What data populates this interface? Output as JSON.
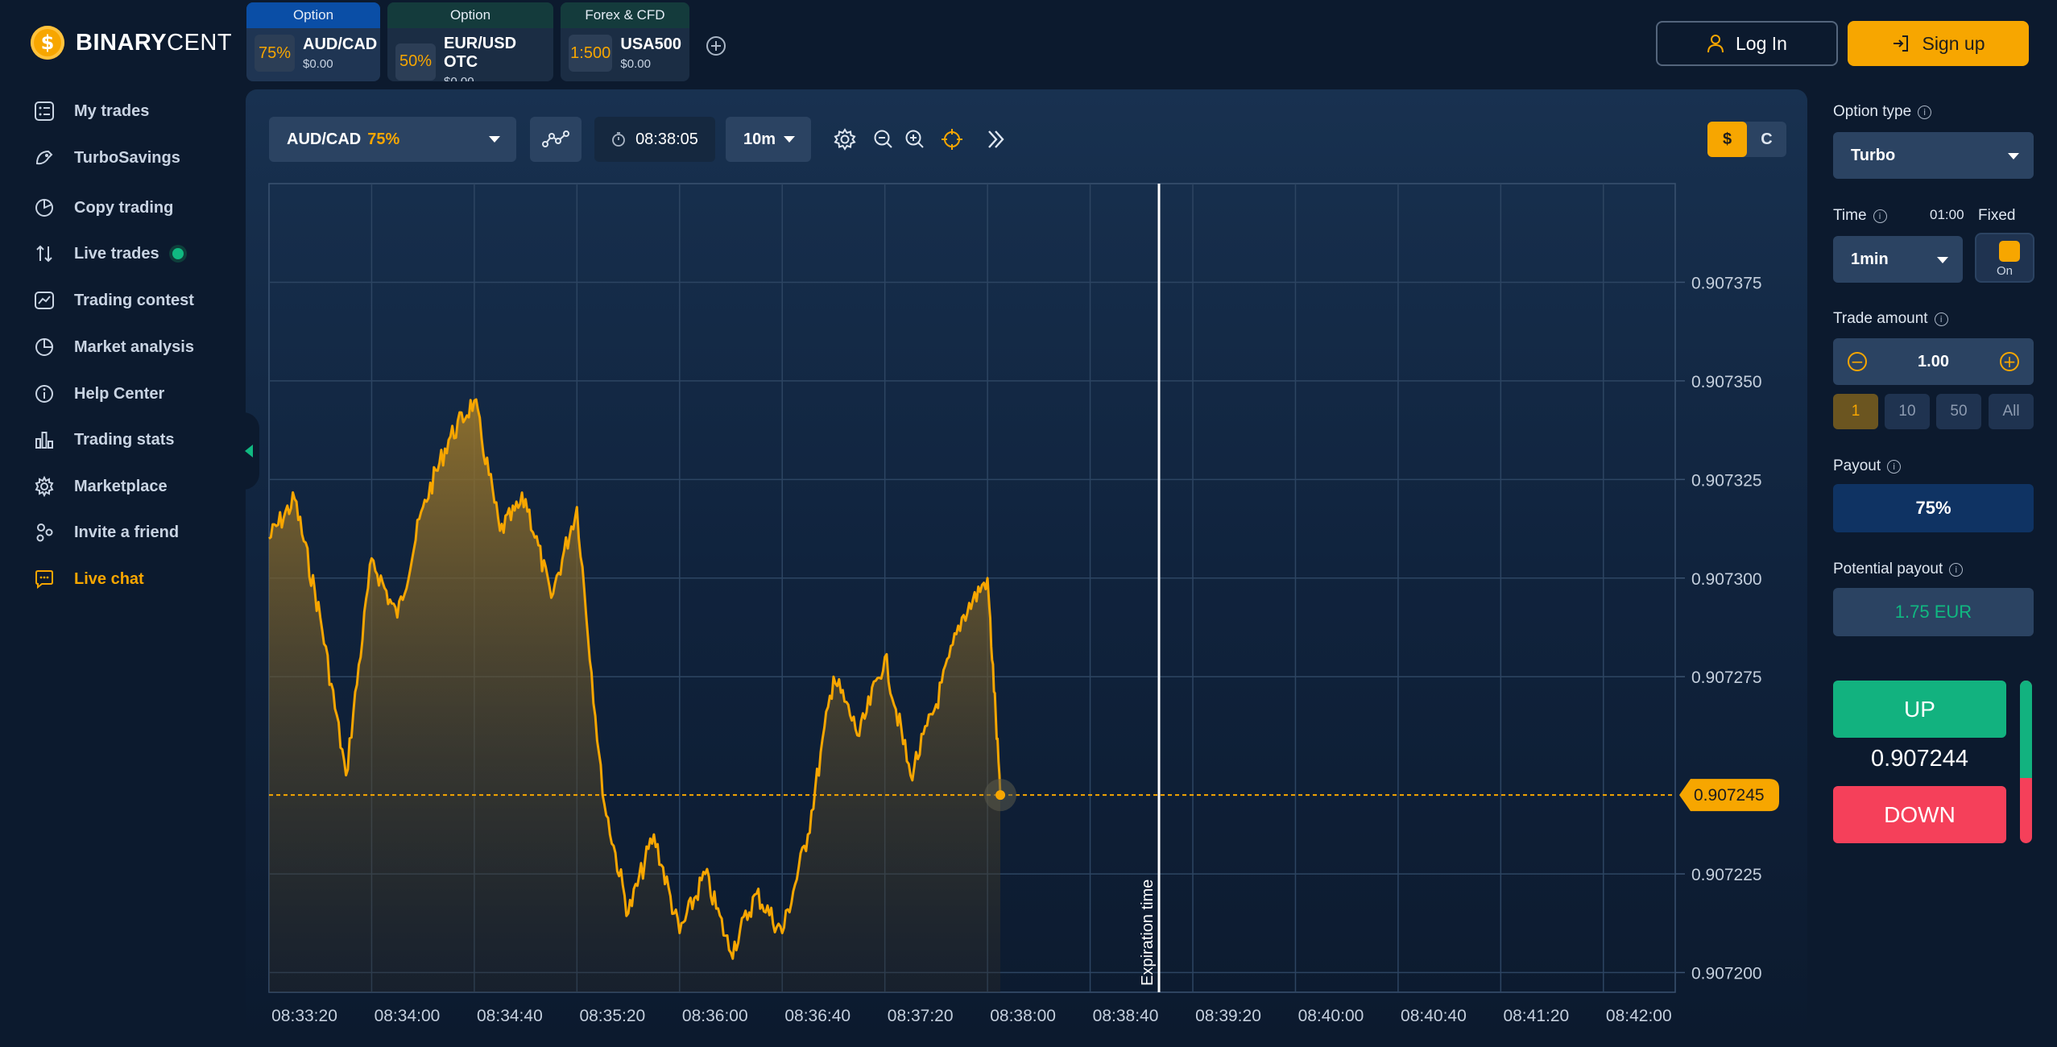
{
  "logo": {
    "mark": "$",
    "brand_bold": "BINARY",
    "brand_light": "CENT"
  },
  "sidebar": {
    "items": [
      {
        "label": "My trades",
        "icon": "trades-icon"
      },
      {
        "label": "TurboSavings",
        "icon": "turbosavings-icon"
      },
      {
        "label": "Copy trading",
        "icon": "copy-trading-icon"
      },
      {
        "label": "Live trades",
        "icon": "live-trades-icon"
      },
      {
        "label": "Trading contest",
        "icon": "trading-contest-icon"
      },
      {
        "label": "Market analysis",
        "icon": "market-analysis-icon"
      },
      {
        "label": "Help Center",
        "icon": "info-icon"
      },
      {
        "label": "Trading stats",
        "icon": "bar-chart-icon"
      },
      {
        "label": "Marketplace",
        "icon": "gear-icon"
      },
      {
        "label": "Invite a friend",
        "icon": "invite-icon"
      },
      {
        "label": "Live chat",
        "icon": "chat-icon"
      }
    ]
  },
  "asset_tabs": [
    {
      "category": "Option",
      "chip": "75%",
      "name": "AUD/CAD",
      "balance": "$0.00"
    },
    {
      "category": "Option",
      "chip": "50%",
      "name": "EUR/USD OTC",
      "balance": "$0.00"
    },
    {
      "category": "Forex & CFD",
      "chip": "1:500",
      "name": "USA500",
      "balance": "$0.00"
    }
  ],
  "auth": {
    "login": "Log In",
    "signup": "Sign up"
  },
  "toolbar": {
    "asset": "AUD/CAD",
    "asset_pct": "75%",
    "clock": "08:38:05",
    "timeframe": "10m",
    "currency_on": "$",
    "currency_off": "C"
  },
  "chart_data": {
    "type": "area",
    "title": "",
    "xlabel": "",
    "ylabel": "",
    "x_ticks": [
      "08:33:20",
      "08:34:00",
      "08:34:40",
      "08:35:20",
      "08:36:00",
      "08:36:40",
      "08:37:20",
      "08:38:00",
      "08:38:40",
      "08:39:20",
      "08:40:00",
      "08:40:40",
      "08:41:20",
      "08:42:00"
    ],
    "y_ticks": [
      "0.907375",
      "0.907350",
      "0.907325",
      "0.907300",
      "0.907275",
      "0.907225",
      "0.907200"
    ],
    "ylim": [
      0.907195,
      0.9074
    ],
    "current_price": "0.907245",
    "expiration_label": "Expiration time",
    "expiration_time": "08:39:20",
    "series": [
      {
        "x": [
          "08:33:20",
          "08:33:30",
          "08:33:40",
          "08:33:50",
          "08:34:00",
          "08:34:10",
          "08:34:20",
          "08:34:30",
          "08:34:40",
          "08:34:50",
          "08:35:00",
          "08:35:10",
          "08:35:20",
          "08:35:30",
          "08:35:40",
          "08:35:50",
          "08:36:00",
          "08:36:10",
          "08:36:20",
          "08:36:30",
          "08:36:40",
          "08:36:50",
          "08:37:00",
          "08:37:10",
          "08:37:20",
          "08:37:30",
          "08:37:40",
          "08:37:50",
          "08:38:00",
          "08:38:05"
        ],
        "values": [
          0.90731,
          0.90732,
          0.90729,
          0.90725,
          0.907305,
          0.90729,
          0.907318,
          0.907335,
          0.907345,
          0.907312,
          0.90732,
          0.907295,
          0.907318,
          0.907245,
          0.907215,
          0.907235,
          0.90721,
          0.907225,
          0.907205,
          0.90722,
          0.90721,
          0.907235,
          0.907275,
          0.90726,
          0.90728,
          0.90725,
          0.907268,
          0.90729,
          0.9073,
          0.907245
        ]
      }
    ]
  },
  "panel": {
    "option_type_label": "Option type",
    "option_type": "Turbo",
    "time_label": "Time",
    "time_value": "01:00",
    "fixed_label": "Fixed",
    "fixed_state": "On",
    "time_select": "1min",
    "amount_label": "Trade amount",
    "amount": "1.00",
    "quick_amounts": [
      "1",
      "10",
      "50",
      "All"
    ],
    "payout_label": "Payout",
    "payout": "75%",
    "potential_label": "Potential payout",
    "potential": "1.75 EUR",
    "up": "UP",
    "price": "0.907244",
    "down": "DOWN",
    "sentiment_up": 0.6
  },
  "colors": {
    "accent": "#f7a600",
    "up": "#12b27f",
    "down": "#f5405a",
    "panel": "#2b4362"
  }
}
